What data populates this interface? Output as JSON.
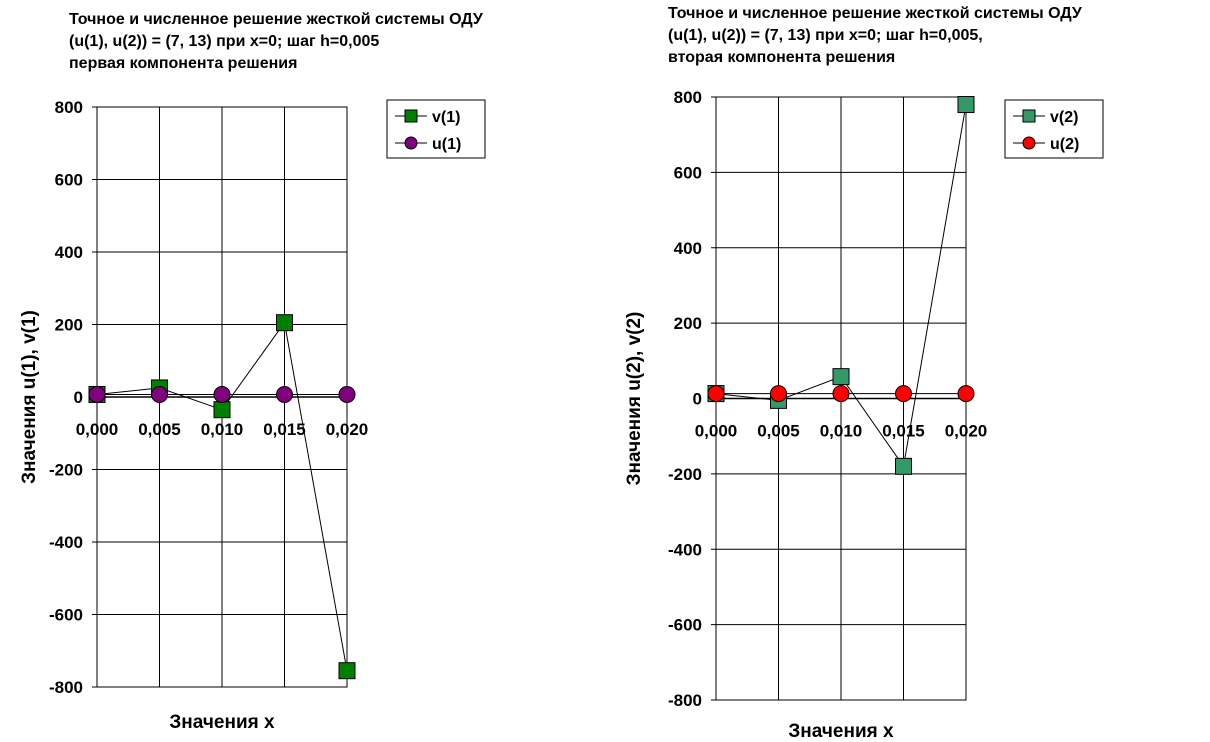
{
  "chart_data": [
    {
      "type": "line",
      "title_lines": [
        "Точное и численное решение жесткой системы ОДУ",
        "(u(1), u(2)) = (7, 13) при x=0; шаг h=0,005",
        "первая компонента решения"
      ],
      "xlabel": "Значения x",
      "ylabel": "Значения u(1), v(1)",
      "categories": [
        "0,000",
        "0,005",
        "0,010",
        "0,015",
        "0,020"
      ],
      "ylim": [
        -800,
        800
      ],
      "yticks": [
        800,
        600,
        400,
        200,
        0,
        -200,
        -400,
        -600,
        -800
      ],
      "grid": true,
      "legend_position": "top-right",
      "series": [
        {
          "name": "v(1)",
          "values": [
            7,
            25,
            -35,
            205,
            -755
          ],
          "color": "#008000",
          "marker": "square"
        },
        {
          "name": "u(1)",
          "values": [
            7,
            7,
            7,
            7,
            7
          ],
          "color": "#800080",
          "marker": "circle"
        }
      ]
    },
    {
      "type": "line",
      "title_lines": [
        "Точное и численное решение жесткой системы ОДУ",
        "(u(1), u(2)) = (7, 13) при x=0; шаг h=0,005,",
        "вторая компонента решения"
      ],
      "xlabel": "Значения x",
      "ylabel": "Значения u(2), v(2)",
      "categories": [
        "0,000",
        "0,005",
        "0,010",
        "0,015",
        "0,020"
      ],
      "ylim": [
        -800,
        800
      ],
      "yticks": [
        800,
        600,
        400,
        200,
        0,
        -200,
        -400,
        -600,
        -800
      ],
      "grid": true,
      "legend_position": "top-right",
      "series": [
        {
          "name": "v(2)",
          "values": [
            13,
            -5,
            58,
            -180,
            780
          ],
          "color": "#339966",
          "marker": "square"
        },
        {
          "name": "u(2)",
          "values": [
            13,
            13,
            13,
            13,
            13
          ],
          "color": "#ff0000",
          "marker": "circle"
        }
      ]
    }
  ]
}
